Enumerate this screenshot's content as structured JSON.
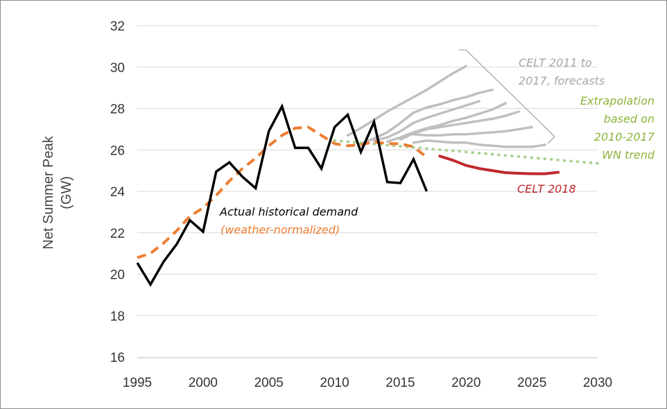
{
  "chart_data": {
    "type": "line",
    "ylabel": [
      "Net Summer Peak",
      "(GW)"
    ],
    "xlim": [
      1995,
      2030
    ],
    "ylim": [
      16,
      32
    ],
    "xticks": [
      1995,
      2000,
      2005,
      2010,
      2015,
      2020,
      2025,
      2030
    ],
    "yticks": [
      16,
      18,
      20,
      22,
      24,
      26,
      28,
      30,
      32
    ],
    "grid": "horizontal",
    "colors": {
      "actual": "#000000",
      "weather_normalized": "#ed7d31",
      "forecasts": "#bfbfbf",
      "extrapolation": "#a9d18e",
      "celt2018": "#c0282d",
      "grid": "#d9d9d9"
    },
    "series": [
      {
        "name": "Actual historical demand",
        "style": "solid",
        "x": [
          1995,
          1996,
          1997,
          1998,
          1999,
          2000,
          2001,
          2002,
          2003,
          2004,
          2005,
          2006,
          2007,
          2008,
          2009,
          2010,
          2011,
          2012,
          2013,
          2014,
          2015,
          2016,
          2017
        ],
        "y": [
          20.55,
          19.5,
          20.6,
          21.45,
          22.6,
          22.05,
          24.95,
          25.4,
          24.7,
          24.15,
          26.9,
          28.1,
          26.1,
          26.1,
          25.1,
          27.1,
          27.7,
          25.9,
          27.35,
          24.45,
          24.4,
          25.55,
          24.0
        ]
      },
      {
        "name": "(weather-normalized)",
        "style": "dashed",
        "x": [
          1995,
          1996,
          1997,
          1998,
          1999,
          2000,
          2001,
          2002,
          2003,
          2004,
          2005,
          2006,
          2007,
          2008,
          2009,
          2010,
          2011,
          2012,
          2013,
          2014,
          2015,
          2016,
          2017
        ],
        "y": [
          20.8,
          21.0,
          21.5,
          22.1,
          22.8,
          23.2,
          23.8,
          24.5,
          25.1,
          25.6,
          26.2,
          26.7,
          27.05,
          27.1,
          26.7,
          26.3,
          26.2,
          26.25,
          26.4,
          26.3,
          26.3,
          26.15,
          25.65
        ]
      },
      {
        "name": "CELT 2011 to 2017, forecasts",
        "style": "solid",
        "lines": [
          {
            "x": [
              2011,
              2012,
              2013,
              2014,
              2015,
              2016,
              2017,
              2018,
              2019,
              2020
            ],
            "y": [
              26.7,
              27.05,
              27.45,
              27.85,
              28.2,
              28.55,
              28.9,
              29.3,
              29.7,
              30.05
            ]
          },
          {
            "x": [
              2012,
              2013,
              2014,
              2015,
              2016,
              2017,
              2018,
              2019,
              2020,
              2021,
              2022
            ],
            "y": [
              26.3,
              26.55,
              26.85,
              27.3,
              27.8,
              28.05,
              28.2,
              28.4,
              28.55,
              28.75,
              28.9
            ]
          },
          {
            "x": [
              2013,
              2014,
              2015,
              2016,
              2017,
              2018,
              2019,
              2020,
              2021
            ],
            "y": [
              26.45,
              26.6,
              26.9,
              27.3,
              27.55,
              27.75,
              27.95,
              28.15,
              28.35
            ]
          },
          {
            "x": [
              2014,
              2015,
              2016,
              2017,
              2018,
              2019,
              2020,
              2021,
              2022,
              2023
            ],
            "y": [
              26.4,
              26.6,
              26.85,
              27.05,
              27.2,
              27.4,
              27.55,
              27.75,
              27.95,
              28.25
            ]
          },
          {
            "x": [
              2015,
              2016,
              2017,
              2018,
              2019,
              2020,
              2021,
              2022,
              2023,
              2024
            ],
            "y": [
              26.5,
              26.8,
              27.0,
              27.1,
              27.2,
              27.3,
              27.4,
              27.5,
              27.65,
              27.85
            ]
          },
          {
            "x": [
              2016,
              2017,
              2018,
              2019,
              2020,
              2021,
              2022,
              2023,
              2024,
              2025
            ],
            "y": [
              26.75,
              26.7,
              26.7,
              26.75,
              26.75,
              26.8,
              26.85,
              26.9,
              27.0,
              27.1
            ]
          },
          {
            "x": [
              2016,
              2017,
              2018,
              2019,
              2020,
              2021,
              2022,
              2023,
              2024,
              2025,
              2026
            ],
            "y": [
              26.35,
              26.45,
              26.4,
              26.35,
              26.35,
              26.25,
              26.2,
              26.15,
              26.15,
              26.15,
              26.25
            ]
          }
        ]
      },
      {
        "name": "Extrapolation based on 2010-2017 WN trend",
        "style": "dotted",
        "x": [
          2010,
          2030
        ],
        "y": [
          26.45,
          25.35
        ]
      },
      {
        "name": "CELT 2018",
        "style": "solid",
        "x": [
          2018,
          2019,
          2020,
          2021,
          2022,
          2023,
          2024,
          2025,
          2026,
          2027
        ],
        "y": [
          25.7,
          25.5,
          25.25,
          25.1,
          25.0,
          24.9,
          24.87,
          24.85,
          24.85,
          24.92
        ]
      }
    ],
    "annotations": {
      "actual": "Actual historical demand",
      "weather_normalized": "(weather-normalized)",
      "forecasts": [
        "CELT 2011 to",
        "2017, forecasts"
      ],
      "extrapolation": [
        "Extrapolation",
        "based on",
        "2010-2017",
        "WN trend"
      ],
      "celt2018": "CELT 2018"
    }
  }
}
